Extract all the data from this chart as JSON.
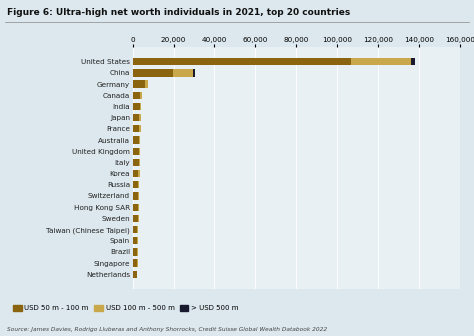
{
  "title": "Figure 6: Ultra-high net worth individuals in 2021, top 20 countries",
  "countries": [
    "United States",
    "China",
    "Germany",
    "Canada",
    "India",
    "Japan",
    "France",
    "Australia",
    "United Kingdom",
    "Italy",
    "Korea",
    "Russia",
    "Switzerland",
    "Hong Kong SAR",
    "Sweden",
    "Taiwan (Chinese Taipei)",
    "Spain",
    "Brazil",
    "Singapore",
    "Netherlands"
  ],
  "usd_50_100": [
    107000,
    19500,
    6000,
    3800,
    3500,
    3300,
    3200,
    3100,
    3000,
    2900,
    2800,
    2700,
    2600,
    2500,
    2400,
    2300,
    2200,
    2100,
    2000,
    1900
  ],
  "usd_100_500": [
    29000,
    10000,
    1500,
    900,
    700,
    650,
    620,
    600,
    580,
    550,
    520,
    500,
    480,
    460,
    440,
    420,
    400,
    380,
    360,
    340
  ],
  "usd_500plus": [
    2000,
    800,
    0,
    0,
    0,
    0,
    0,
    0,
    0,
    0,
    0,
    0,
    0,
    0,
    0,
    0,
    0,
    0,
    0,
    0
  ],
  "color_50_100": "#8B6410",
  "color_100_500": "#C9A84C",
  "color_500plus": "#1a1a2e",
  "xlim": [
    0,
    160000
  ],
  "xticks": [
    0,
    20000,
    40000,
    60000,
    80000,
    100000,
    120000,
    140000,
    160000
  ],
  "bg_color": "#dce8ee",
  "plot_bg": "#e8f0f4",
  "source_text": "Source: James Davies, Rodrigo Lluberas and Anthony Shorrocks, Credit Suisse Global Wealth Databook 2022",
  "legend_labels": [
    "USD 50 m - 100 m",
    "USD 100 m - 500 m",
    "> USD 500 m"
  ]
}
